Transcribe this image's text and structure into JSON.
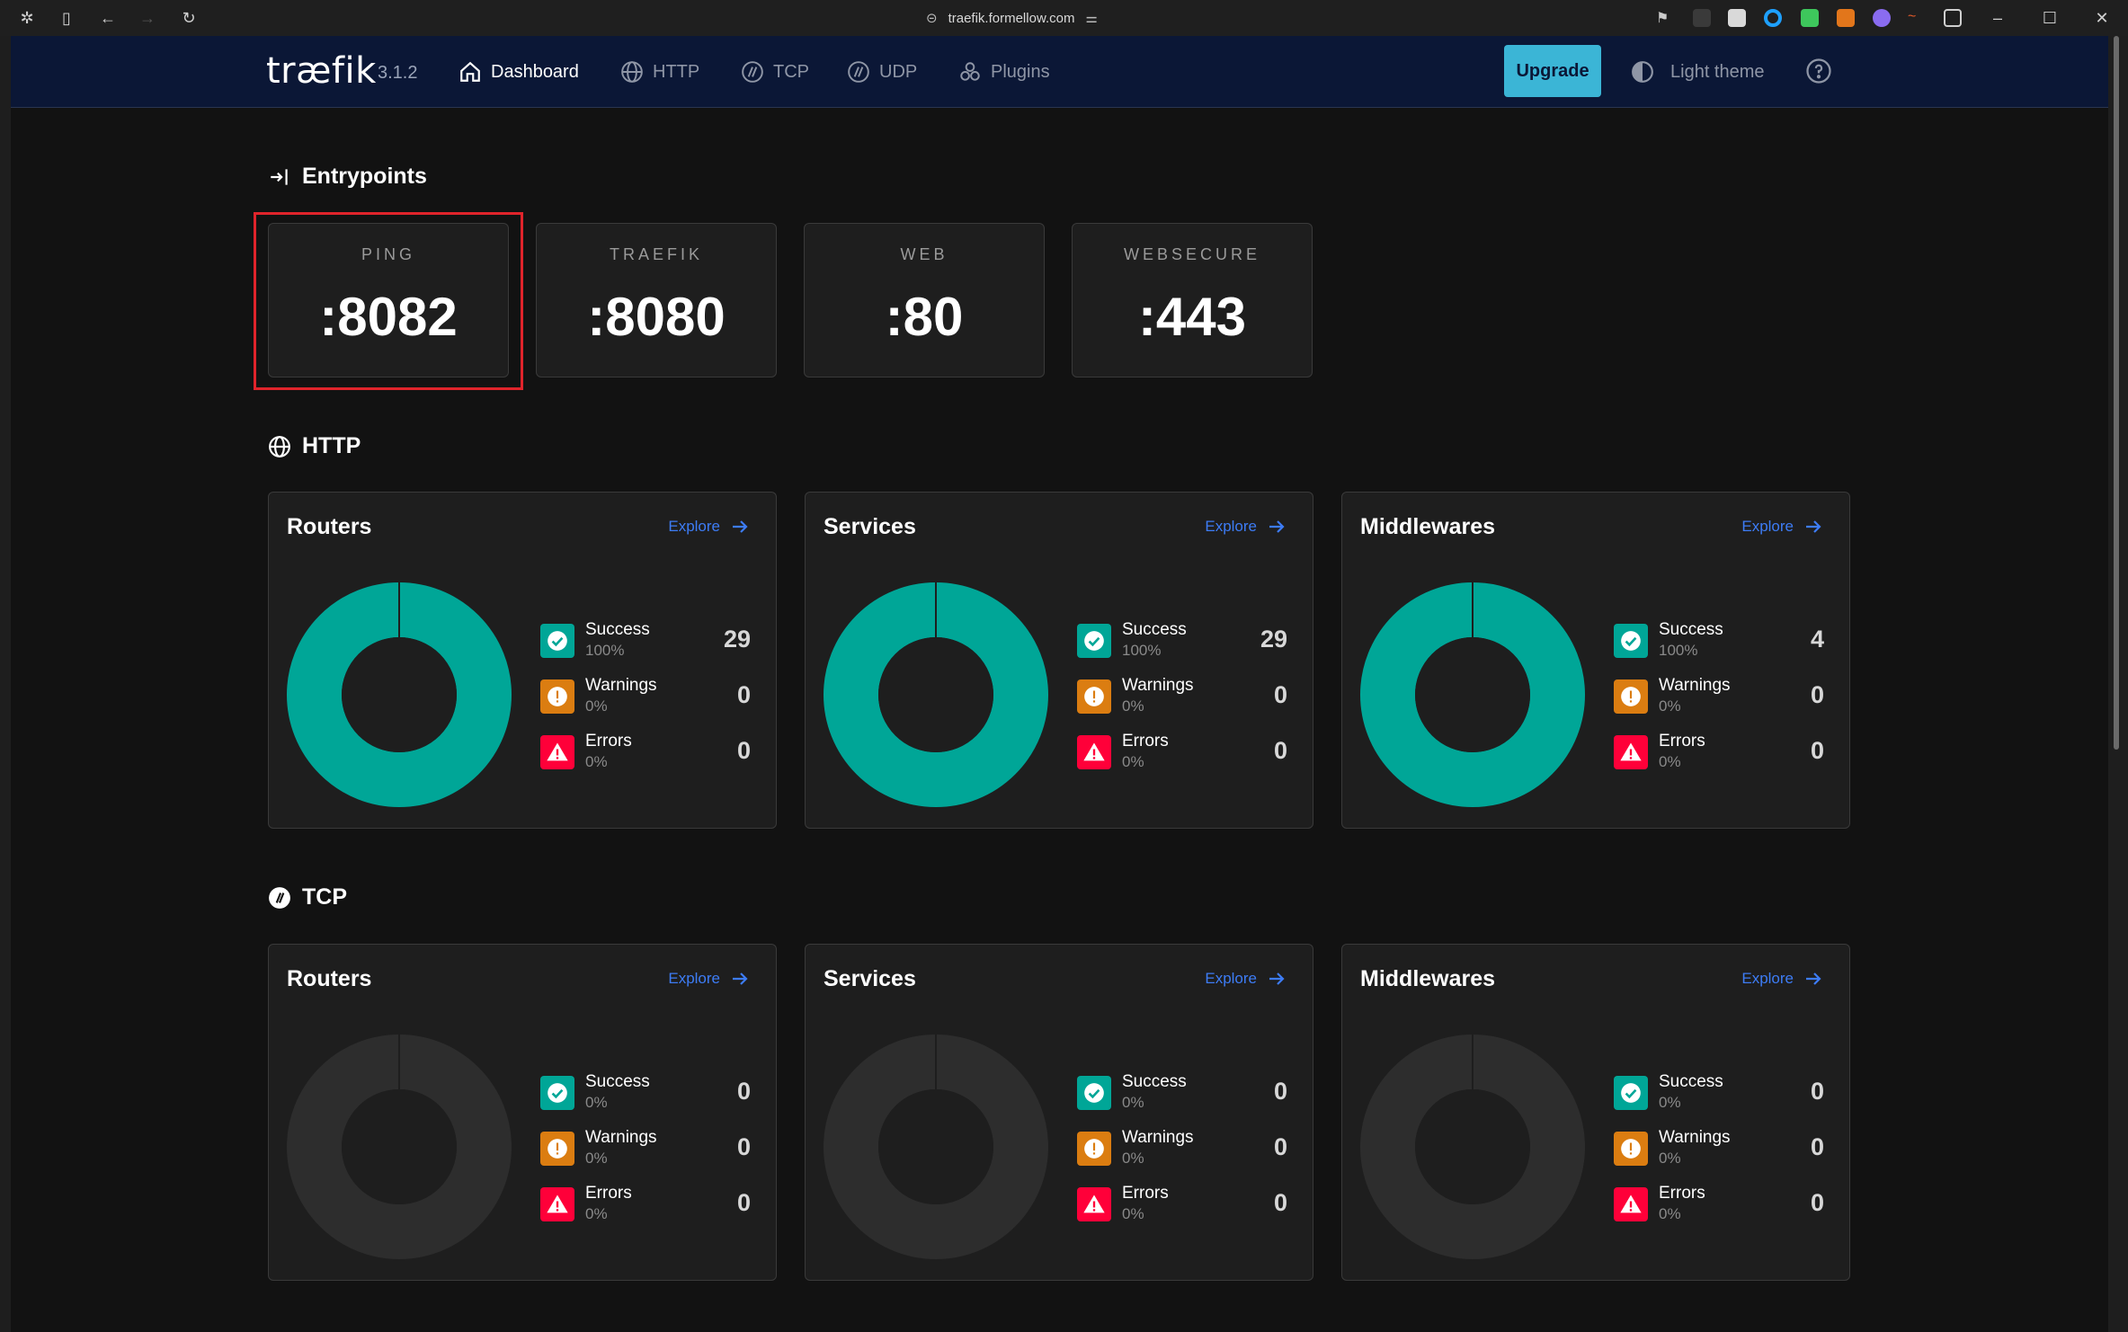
{
  "browser": {
    "url": "traefik.formellow.com"
  },
  "header": {
    "logo": "træfik",
    "version": "3.1.2",
    "nav": [
      {
        "label": "Dashboard",
        "icon": "home-icon",
        "active": true
      },
      {
        "label": "HTTP",
        "icon": "globe-icon",
        "active": false
      },
      {
        "label": "TCP",
        "icon": "tcp-icon",
        "active": false
      },
      {
        "label": "UDP",
        "icon": "udp-icon",
        "active": false
      },
      {
        "label": "Plugins",
        "icon": "plugins-icon",
        "active": false
      }
    ],
    "upgrade_label": "Upgrade",
    "theme_label": "Light theme",
    "help_icon": "help-icon"
  },
  "entrypoints": {
    "title": "Entrypoints",
    "items": [
      {
        "name": "PING",
        "port": ":8082"
      },
      {
        "name": "TRAEFIK",
        "port": ":8080"
      },
      {
        "name": "WEB",
        "port": ":80"
      },
      {
        "name": "WEBSECURE",
        "port": ":443"
      }
    ]
  },
  "http": {
    "title": "HTTP",
    "cards": [
      {
        "title": "Routers",
        "explore": "Explore",
        "stats": [
          {
            "label": "Success",
            "pct": "100%",
            "count": "29"
          },
          {
            "label": "Warnings",
            "pct": "0%",
            "count": "0"
          },
          {
            "label": "Errors",
            "pct": "0%",
            "count": "0"
          }
        ]
      },
      {
        "title": "Services",
        "explore": "Explore",
        "stats": [
          {
            "label": "Success",
            "pct": "100%",
            "count": "29"
          },
          {
            "label": "Warnings",
            "pct": "0%",
            "count": "0"
          },
          {
            "label": "Errors",
            "pct": "0%",
            "count": "0"
          }
        ]
      },
      {
        "title": "Middlewares",
        "explore": "Explore",
        "stats": [
          {
            "label": "Success",
            "pct": "100%",
            "count": "4"
          },
          {
            "label": "Warnings",
            "pct": "0%",
            "count": "0"
          },
          {
            "label": "Errors",
            "pct": "0%",
            "count": "0"
          }
        ]
      }
    ]
  },
  "tcp": {
    "title": "TCP",
    "cards": [
      {
        "title": "Routers",
        "explore": "Explore",
        "stats": [
          {
            "label": "Success",
            "pct": "0%",
            "count": "0"
          },
          {
            "label": "Warnings",
            "pct": "0%",
            "count": "0"
          },
          {
            "label": "Errors",
            "pct": "0%",
            "count": "0"
          }
        ]
      },
      {
        "title": "Services",
        "explore": "Explore",
        "stats": [
          {
            "label": "Success",
            "pct": "0%",
            "count": "0"
          },
          {
            "label": "Warnings",
            "pct": "0%",
            "count": "0"
          },
          {
            "label": "Errors",
            "pct": "0%",
            "count": "0"
          }
        ]
      },
      {
        "title": "Middlewares",
        "explore": "Explore",
        "stats": [
          {
            "label": "Success",
            "pct": "0%",
            "count": "0"
          },
          {
            "label": "Warnings",
            "pct": "0%",
            "count": "0"
          },
          {
            "label": "Errors",
            "pct": "0%",
            "count": "0"
          }
        ]
      }
    ]
  },
  "colors": {
    "success": "#00a697",
    "warning": "#db7d11",
    "error": "#ff0039",
    "empty": "#2d2d2d",
    "accent": "#3bb5d6",
    "header_bg": "#0b1736",
    "explore": "#3d7cf5",
    "highlight": "#e0242b"
  }
}
